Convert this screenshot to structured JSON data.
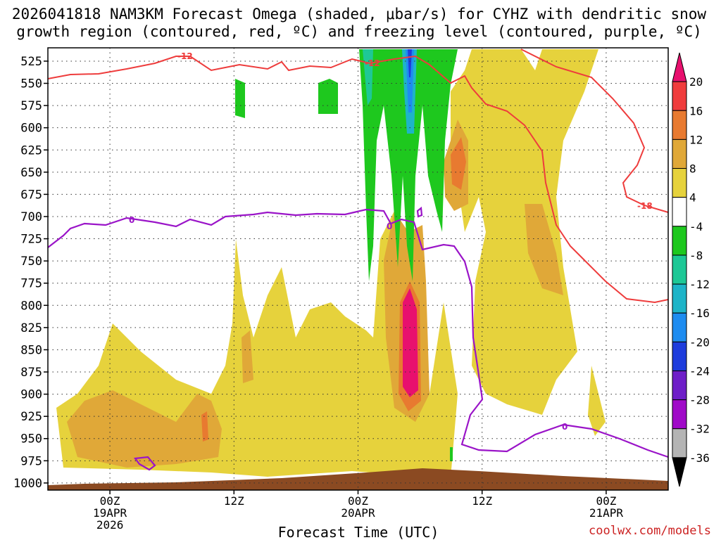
{
  "chart_data": {
    "type": "heatmap",
    "title_line1": "2026041818 NAM3KM Forecast Omega (shaded, μbar/s) for CYHZ with dendritic snow",
    "title_line2": "growth region (contoured, red, ºC) and freezing level (contoured, purple, ºC)",
    "xlabel": "Forecast Time (UTC)",
    "ylabel": "",
    "credit": "coolwx.com/models",
    "y_ticks": [
      525,
      550,
      575,
      600,
      625,
      650,
      675,
      700,
      725,
      750,
      775,
      800,
      825,
      850,
      875,
      900,
      925,
      950,
      975,
      1000
    ],
    "x_ticks": [
      {
        "hour": 6,
        "lines": [
          "00Z",
          "19APR",
          "2026"
        ]
      },
      {
        "hour": 18,
        "lines": [
          "12Z"
        ]
      },
      {
        "hour": 30,
        "lines": [
          "00Z",
          "20APR"
        ]
      },
      {
        "hour": 42,
        "lines": [
          "12Z"
        ]
      },
      {
        "hour": 54,
        "lines": [
          "00Z",
          "21APR"
        ]
      }
    ],
    "xlim_hours": [
      0,
      60
    ],
    "ylim_hpa": [
      510,
      1008
    ],
    "colorbar": {
      "levels": [
        20,
        16,
        12,
        8,
        4,
        -4,
        -8,
        -12,
        -16,
        -20,
        -24,
        -28,
        -32,
        -36
      ],
      "colors": [
        "#e8106e",
        "#f03c3c",
        "#e87a30",
        "#e0a838",
        "#e6d23c",
        "#ffffff",
        "#1ec81e",
        "#1ec896",
        "#1eb4c8",
        "#1e8cf0",
        "#1e3cdc",
        "#6e1ec8",
        "#a00ac8",
        "#b4b4b4",
        "#000000"
      ]
    },
    "contours": [
      {
        "name": "dendritic snow growth -12C",
        "color": "#ee3c3c",
        "label": "-12"
      },
      {
        "name": "dendritic snow growth -18C",
        "color": "#ee3c3c",
        "label": "-18"
      },
      {
        "name": "freezing level 0C",
        "color": "#9a14c8",
        "label": "0"
      }
    ]
  }
}
